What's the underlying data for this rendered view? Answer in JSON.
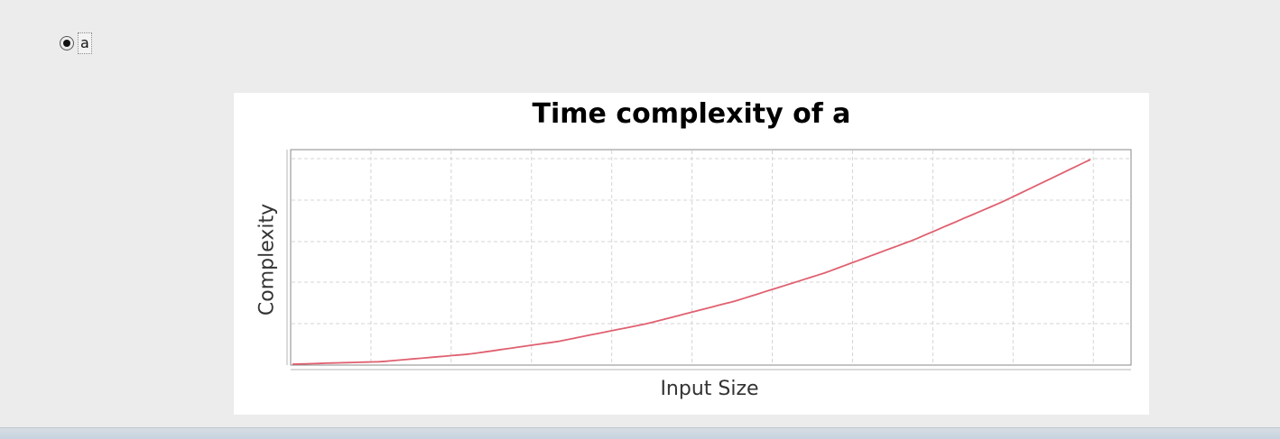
{
  "options": {
    "selected_label": "a"
  },
  "chart_data": {
    "type": "line",
    "title": "Time complexity of a",
    "xlabel": "Input Size",
    "ylabel": "Complexity",
    "grid": true,
    "legend": "none",
    "line_color": "#e06070",
    "series": [
      {
        "values": [
          0,
          0.0124,
          0.0495,
          0.1114,
          0.198,
          0.3093,
          0.4454,
          0.6063,
          0.7919,
          1.0
        ]
      }
    ],
    "x": [
      0,
      1,
      2,
      3,
      4,
      5,
      6,
      7,
      8,
      9
    ]
  }
}
